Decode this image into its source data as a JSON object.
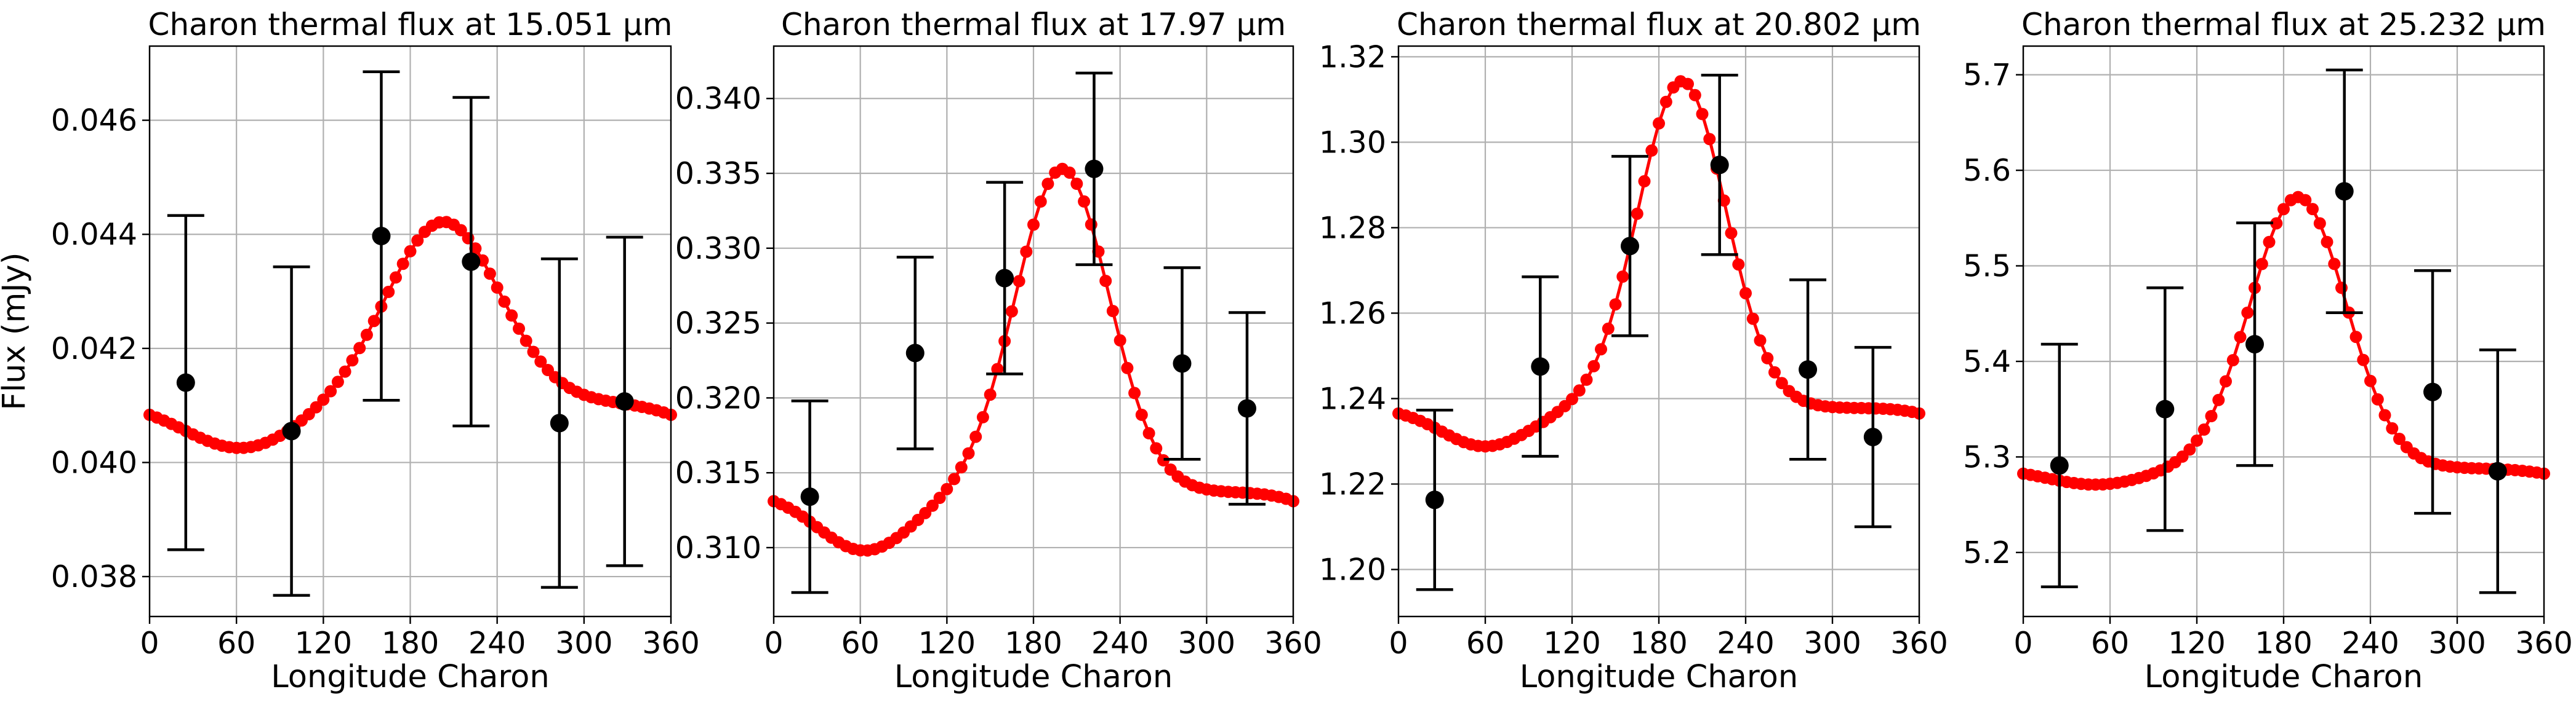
{
  "colors": {
    "model": "#ff0000",
    "observed": "#000000",
    "grid": "#b0b0b0"
  },
  "chart_data": [
    {
      "type": "line",
      "title": "Charon thermal flux at 15.051 μm",
      "xlabel": "Longitude Charon",
      "ylabel": "Flux (mJy)",
      "xlim": [
        0,
        360
      ],
      "ylim": [
        0.0373,
        0.0473
      ],
      "xticks": [
        0,
        60,
        120,
        180,
        240,
        300,
        360
      ],
      "yticks": [
        0.038,
        0.04,
        0.042,
        0.044,
        0.046
      ],
      "ytick_labels": [
        "0.038",
        "0.040",
        "0.042",
        "0.044",
        "0.046"
      ],
      "grid": true,
      "model": {
        "base": 0.04105,
        "min": 0.04025,
        "max": 0.04422,
        "lon_min": 63,
        "lon_max": 203,
        "width": 55,
        "points": 73
      },
      "observations": [
        {
          "x": 25,
          "y": 0.0414,
          "err": 0.00293
        },
        {
          "x": 98,
          "y": 0.04055,
          "err": 0.00288
        },
        {
          "x": 160,
          "y": 0.04397,
          "err": 0.00288
        },
        {
          "x": 222,
          "y": 0.04352,
          "err": 0.00288
        },
        {
          "x": 283,
          "y": 0.04069,
          "err": 0.00288
        },
        {
          "x": 328,
          "y": 0.04107,
          "err": 0.00288
        }
      ]
    },
    {
      "type": "line",
      "title": "Charon thermal flux at 17.97 μm",
      "xlabel": "Longitude Charon",
      "ylabel": "",
      "xlim": [
        0,
        360
      ],
      "ylim": [
        0.3054,
        0.3435
      ],
      "xticks": [
        0,
        60,
        120,
        180,
        240,
        300,
        360
      ],
      "yticks": [
        0.31,
        0.315,
        0.32,
        0.325,
        0.33,
        0.335,
        0.34
      ],
      "ytick_labels": [
        "0.310",
        "0.315",
        "0.320",
        "0.325",
        "0.330",
        "0.335",
        "0.340"
      ],
      "grid": true,
      "model": {
        "base": 0.3137,
        "min": 0.3098,
        "max": 0.3353,
        "lon_min": 63,
        "lon_max": 200,
        "width": 46,
        "points": 73
      },
      "observations": [
        {
          "x": 25,
          "y": 0.3134,
          "err": 0.0064
        },
        {
          "x": 98,
          "y": 0.323,
          "err": 0.0064
        },
        {
          "x": 160,
          "y": 0.328,
          "err": 0.0064
        },
        {
          "x": 222,
          "y": 0.3353,
          "err": 0.0064
        },
        {
          "x": 283,
          "y": 0.3223,
          "err": 0.0064
        },
        {
          "x": 328,
          "y": 0.3193,
          "err": 0.0064
        }
      ]
    },
    {
      "type": "line",
      "title": "Charon thermal flux at 20.802 μm",
      "xlabel": "Longitude Charon",
      "ylabel": "",
      "xlim": [
        0,
        360
      ],
      "ylim": [
        1.189,
        1.3225
      ],
      "xticks": [
        0,
        60,
        120,
        180,
        240,
        300,
        360
      ],
      "yticks": [
        1.2,
        1.22,
        1.24,
        1.26,
        1.28,
        1.3,
        1.32
      ],
      "ytick_labels": [
        "1.20",
        "1.22",
        "1.24",
        "1.26",
        "1.28",
        "1.30",
        "1.32"
      ],
      "grid": true,
      "model": {
        "base": 1.2378,
        "min": 1.2288,
        "max": 1.3143,
        "lon_min": 60,
        "lon_max": 196,
        "width": 43,
        "points": 73
      },
      "observations": [
        {
          "x": 25,
          "y": 1.2163,
          "err": 0.021
        },
        {
          "x": 98,
          "y": 1.2475,
          "err": 0.021
        },
        {
          "x": 160,
          "y": 1.2757,
          "err": 0.021
        },
        {
          "x": 222,
          "y": 1.2947,
          "err": 0.021
        },
        {
          "x": 283,
          "y": 1.2468,
          "err": 0.021
        },
        {
          "x": 328,
          "y": 1.231,
          "err": 0.021
        }
      ]
    },
    {
      "type": "line",
      "title": "Charon thermal flux at 25.232 μm",
      "xlabel": "Longitude Charon",
      "ylabel": "",
      "xlim": [
        0,
        360
      ],
      "ylim": [
        5.133,
        5.73
      ],
      "xticks": [
        0,
        60,
        120,
        180,
        240,
        300,
        360
      ],
      "yticks": [
        5.2,
        5.3,
        5.4,
        5.5,
        5.6,
        5.7
      ],
      "ytick_labels": [
        "5.2",
        "5.3",
        "5.4",
        "5.5",
        "5.6",
        "5.7"
      ],
      "grid": true,
      "model": {
        "base": 5.288,
        "min": 5.271,
        "max": 5.572,
        "lon_min": 50,
        "lon_max": 190,
        "width": 47,
        "points": 73
      },
      "observations": [
        {
          "x": 25,
          "y": 5.291,
          "err": 0.127
        },
        {
          "x": 98,
          "y": 5.35,
          "err": 0.127
        },
        {
          "x": 160,
          "y": 5.418,
          "err": 0.127
        },
        {
          "x": 222,
          "y": 5.578,
          "err": 0.127
        },
        {
          "x": 283,
          "y": 5.368,
          "err": 0.127
        },
        {
          "x": 328,
          "y": 5.285,
          "err": 0.127
        }
      ]
    }
  ]
}
